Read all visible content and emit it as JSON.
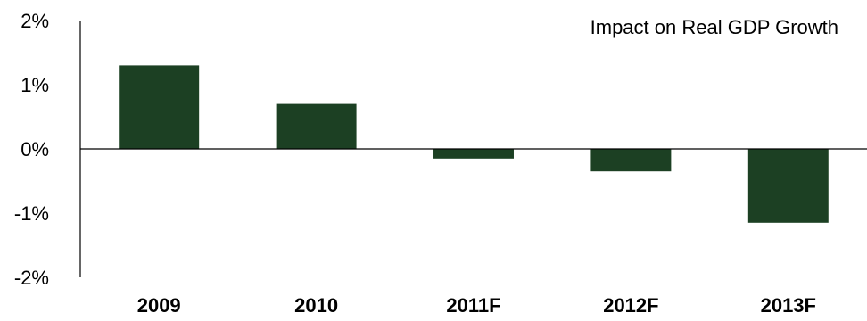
{
  "chart_data": {
    "type": "bar",
    "title": "Impact on Real GDP Growth",
    "categories": [
      "2009",
      "2010",
      "2011F",
      "2012F",
      "2013F"
    ],
    "series": [
      {
        "values": [
          1.3,
          0.7,
          -0.15,
          -0.35,
          -1.15
        ]
      }
    ],
    "ylim": [
      -2,
      2
    ],
    "yticks": [
      2,
      1,
      0,
      -1,
      -2
    ],
    "ytick_labels": [
      "2%",
      "1%",
      "0%",
      "-1%",
      "-2%"
    ],
    "xlabel": "",
    "ylabel": "",
    "grid": false,
    "legend": "none",
    "bar_color": "#1c4023"
  }
}
